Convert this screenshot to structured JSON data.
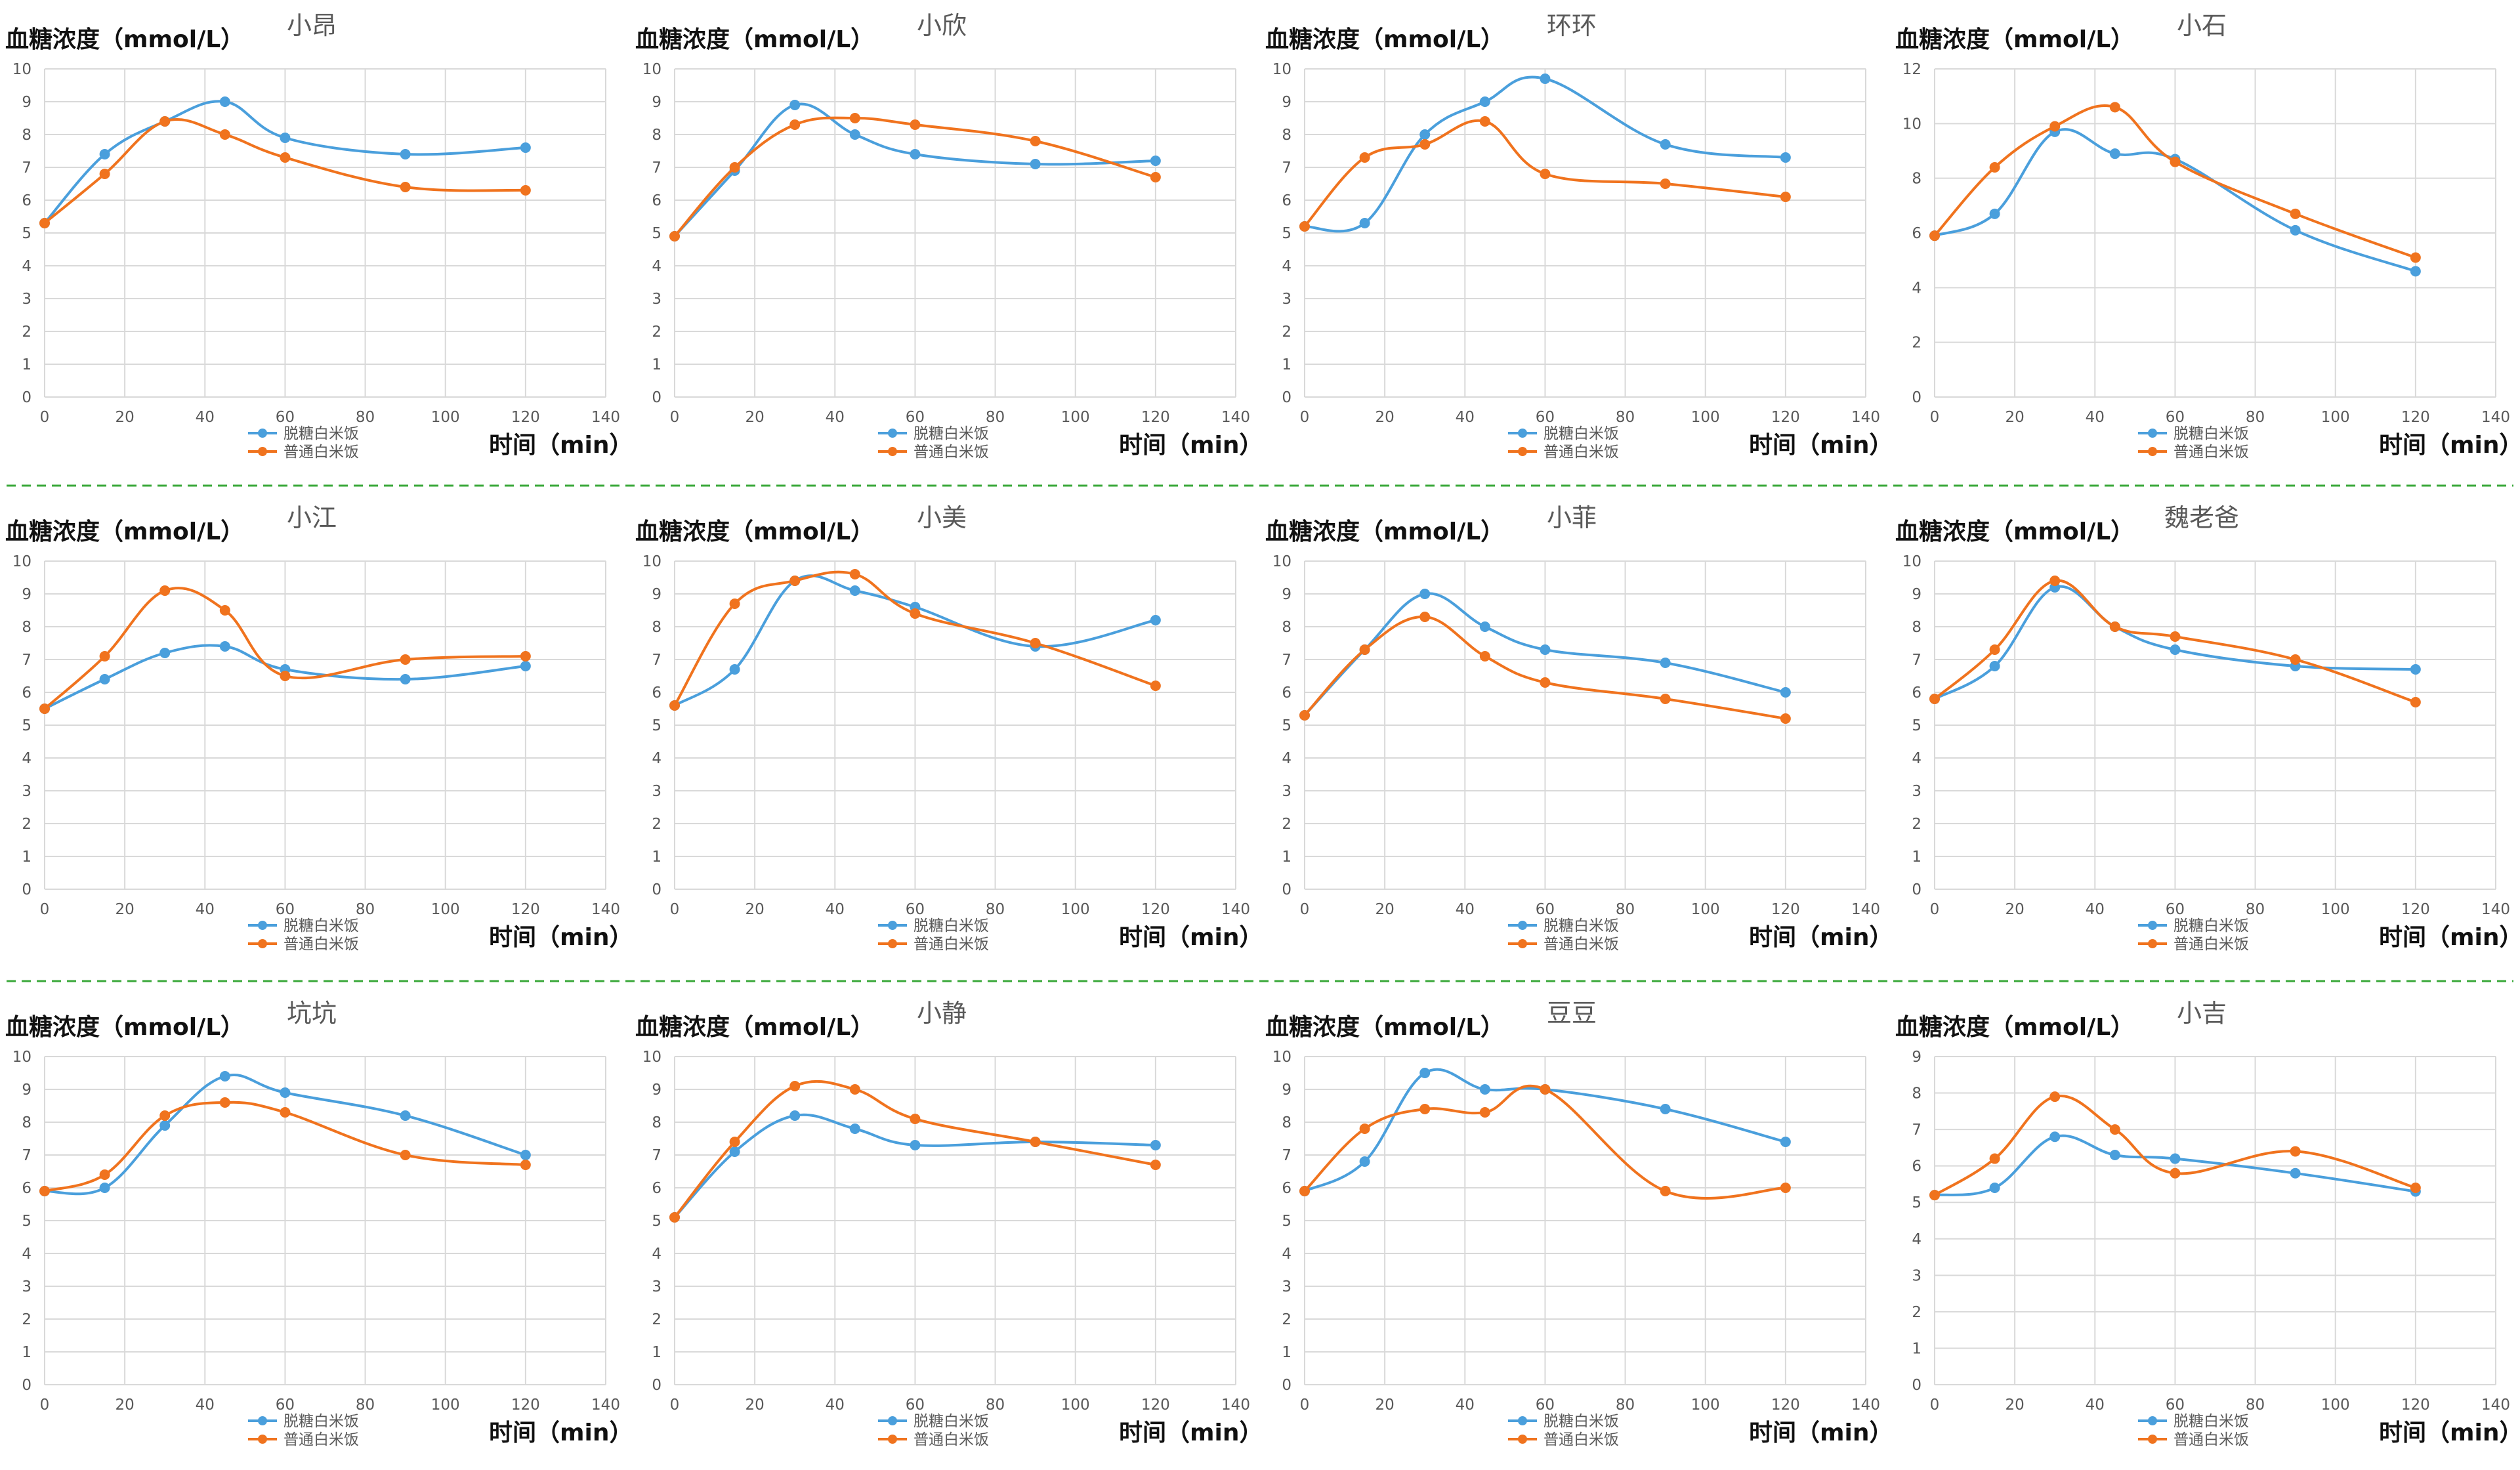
{
  "colors": {
    "sugarfree": "#4a9fdc",
    "regular": "#f0731e",
    "grid": "#d9d9d9",
    "divider": "#3aa83a"
  },
  "axis_text": {
    "ylabel": "血糖浓度（mmol/L）",
    "xlabel": "时间（min）"
  },
  "legend": {
    "sugarfree": "脱糖白米饭",
    "regular": "普通白米饭"
  },
  "chart_data": [
    {
      "type": "line",
      "title": "小昂",
      "legend_position": "bottom",
      "x": [
        0,
        20,
        40,
        60,
        80,
        100,
        120,
        140
      ],
      "y_ticks": [
        0,
        1,
        2,
        3,
        4,
        5,
        6,
        7,
        8,
        9,
        10
      ],
      "ylim": [
        0,
        10
      ],
      "series": [
        {
          "name": "脱糖白米饭",
          "points": [
            [
              0,
              5.3
            ],
            [
              15,
              7.4
            ],
            [
              30,
              8.4
            ],
            [
              45,
              9.0
            ],
            [
              60,
              7.9
            ],
            [
              90,
              7.4
            ],
            [
              120,
              7.6
            ]
          ]
        },
        {
          "name": "普通白米饭",
          "points": [
            [
              0,
              5.3
            ],
            [
              15,
              6.8
            ],
            [
              30,
              8.4
            ],
            [
              45,
              8.0
            ],
            [
              60,
              7.3
            ],
            [
              90,
              6.4
            ],
            [
              120,
              6.3
            ]
          ]
        }
      ]
    },
    {
      "type": "line",
      "title": "小欣",
      "legend_position": "bottom",
      "x": [
        0,
        20,
        40,
        60,
        80,
        100,
        120,
        140
      ],
      "y_ticks": [
        0,
        1,
        2,
        3,
        4,
        5,
        6,
        7,
        8,
        9,
        10
      ],
      "ylim": [
        0,
        10
      ],
      "series": [
        {
          "name": "脱糖白米饭",
          "points": [
            [
              0,
              4.9
            ],
            [
              15,
              6.9
            ],
            [
              30,
              8.9
            ],
            [
              45,
              8.0
            ],
            [
              60,
              7.4
            ],
            [
              90,
              7.1
            ],
            [
              120,
              7.2
            ]
          ]
        },
        {
          "name": "普通白米饭",
          "points": [
            [
              0,
              4.9
            ],
            [
              15,
              7.0
            ],
            [
              30,
              8.3
            ],
            [
              45,
              8.5
            ],
            [
              60,
              8.3
            ],
            [
              90,
              7.8
            ],
            [
              120,
              6.7
            ]
          ]
        }
      ]
    },
    {
      "type": "line",
      "title": "环环",
      "legend_position": "bottom",
      "x": [
        0,
        20,
        40,
        60,
        80,
        100,
        120,
        140
      ],
      "y_ticks": [
        0,
        1,
        2,
        3,
        4,
        5,
        6,
        7,
        8,
        9,
        10
      ],
      "ylim": [
        0,
        10
      ],
      "series": [
        {
          "name": "脱糖白米饭",
          "points": [
            [
              0,
              5.2
            ],
            [
              15,
              5.3
            ],
            [
              30,
              8.0
            ],
            [
              45,
              9.0
            ],
            [
              60,
              9.7
            ],
            [
              90,
              7.7
            ],
            [
              120,
              7.3
            ]
          ]
        },
        {
          "name": "普通白米饭",
          "points": [
            [
              0,
              5.2
            ],
            [
              15,
              7.3
            ],
            [
              30,
              7.7
            ],
            [
              45,
              8.4
            ],
            [
              60,
              6.8
            ],
            [
              90,
              6.5
            ],
            [
              120,
              6.1
            ]
          ]
        }
      ]
    },
    {
      "type": "line",
      "title": "小石",
      "legend_position": "bottom",
      "x": [
        0,
        20,
        40,
        60,
        80,
        100,
        120,
        140
      ],
      "y_ticks": [
        0,
        2,
        4,
        6,
        8,
        10,
        12
      ],
      "ylim": [
        0,
        12
      ],
      "series": [
        {
          "name": "脱糖白米饭",
          "points": [
            [
              0,
              5.9
            ],
            [
              15,
              6.7
            ],
            [
              30,
              9.7
            ],
            [
              45,
              8.9
            ],
            [
              60,
              8.7
            ],
            [
              90,
              6.1
            ],
            [
              120,
              4.6
            ]
          ]
        },
        {
          "name": "普通白米饭",
          "points": [
            [
              0,
              5.9
            ],
            [
              15,
              8.4
            ],
            [
              30,
              9.9
            ],
            [
              45,
              10.6
            ],
            [
              60,
              8.6
            ],
            [
              90,
              6.7
            ],
            [
              120,
              5.1
            ]
          ]
        }
      ]
    },
    {
      "type": "line",
      "title": "小江",
      "legend_position": "bottom",
      "x": [
        0,
        20,
        40,
        60,
        80,
        100,
        120,
        140
      ],
      "y_ticks": [
        0,
        1,
        2,
        3,
        4,
        5,
        6,
        7,
        8,
        9,
        10
      ],
      "ylim": [
        0,
        10
      ],
      "series": [
        {
          "name": "脱糖白米饭",
          "points": [
            [
              0,
              5.5
            ],
            [
              15,
              6.4
            ],
            [
              30,
              7.2
            ],
            [
              45,
              7.4
            ],
            [
              60,
              6.7
            ],
            [
              90,
              6.4
            ],
            [
              120,
              6.8
            ]
          ]
        },
        {
          "name": "普通白米饭",
          "points": [
            [
              0,
              5.5
            ],
            [
              15,
              7.1
            ],
            [
              30,
              9.1
            ],
            [
              45,
              8.5
            ],
            [
              60,
              6.5
            ],
            [
              90,
              7.0
            ],
            [
              120,
              7.1
            ]
          ]
        }
      ]
    },
    {
      "type": "line",
      "title": "小美",
      "legend_position": "bottom",
      "x": [
        0,
        20,
        40,
        60,
        80,
        100,
        120,
        140
      ],
      "y_ticks": [
        0,
        1,
        2,
        3,
        4,
        5,
        6,
        7,
        8,
        9,
        10
      ],
      "ylim": [
        0,
        10
      ],
      "series": [
        {
          "name": "脱糖白米饭",
          "points": [
            [
              0,
              5.6
            ],
            [
              15,
              6.7
            ],
            [
              30,
              9.4
            ],
            [
              45,
              9.1
            ],
            [
              60,
              8.6
            ],
            [
              90,
              7.4
            ],
            [
              120,
              8.2
            ]
          ]
        },
        {
          "name": "普通白米饭",
          "points": [
            [
              0,
              5.6
            ],
            [
              15,
              8.7
            ],
            [
              30,
              9.4
            ],
            [
              45,
              9.6
            ],
            [
              60,
              8.4
            ],
            [
              90,
              7.5
            ],
            [
              120,
              6.2
            ]
          ]
        }
      ]
    },
    {
      "type": "line",
      "title": "小菲",
      "legend_position": "bottom",
      "x": [
        0,
        20,
        40,
        60,
        80,
        100,
        120,
        140
      ],
      "y_ticks": [
        0,
        1,
        2,
        3,
        4,
        5,
        6,
        7,
        8,
        9,
        10
      ],
      "ylim": [
        0,
        10
      ],
      "series": [
        {
          "name": "脱糖白米饭",
          "points": [
            [
              0,
              5.3
            ],
            [
              15,
              7.3
            ],
            [
              30,
              9.0
            ],
            [
              45,
              8.0
            ],
            [
              60,
              7.3
            ],
            [
              90,
              6.9
            ],
            [
              120,
              6.0
            ]
          ]
        },
        {
          "name": "普通白米饭",
          "points": [
            [
              0,
              5.3
            ],
            [
              15,
              7.3
            ],
            [
              30,
              8.3
            ],
            [
              45,
              7.1
            ],
            [
              60,
              6.3
            ],
            [
              90,
              5.8
            ],
            [
              120,
              5.2
            ]
          ]
        }
      ]
    },
    {
      "type": "line",
      "title": "魏老爸",
      "legend_position": "bottom",
      "x": [
        0,
        20,
        40,
        60,
        80,
        100,
        120,
        140
      ],
      "y_ticks": [
        0,
        1,
        2,
        3,
        4,
        5,
        6,
        7,
        8,
        9,
        10
      ],
      "ylim": [
        0,
        10
      ],
      "series": [
        {
          "name": "脱糖白米饭",
          "points": [
            [
              0,
              5.8
            ],
            [
              15,
              6.8
            ],
            [
              30,
              9.2
            ],
            [
              45,
              8.0
            ],
            [
              60,
              7.3
            ],
            [
              90,
              6.8
            ],
            [
              120,
              6.7
            ]
          ]
        },
        {
          "name": "普通白米饭",
          "points": [
            [
              0,
              5.8
            ],
            [
              15,
              7.3
            ],
            [
              30,
              9.4
            ],
            [
              45,
              8.0
            ],
            [
              60,
              7.7
            ],
            [
              90,
              7.0
            ],
            [
              120,
              5.7
            ]
          ]
        }
      ]
    },
    {
      "type": "line",
      "title": "坑坑",
      "legend_position": "bottom",
      "x": [
        0,
        20,
        40,
        60,
        80,
        100,
        120,
        140
      ],
      "y_ticks": [
        0,
        1,
        2,
        3,
        4,
        5,
        6,
        7,
        8,
        9,
        10
      ],
      "ylim": [
        0,
        10
      ],
      "series": [
        {
          "name": "脱糖白米饭",
          "points": [
            [
              0,
              5.9
            ],
            [
              15,
              6.0
            ],
            [
              30,
              7.9
            ],
            [
              45,
              9.4
            ],
            [
              60,
              8.9
            ],
            [
              90,
              8.2
            ],
            [
              120,
              7.0
            ]
          ]
        },
        {
          "name": "普通白米饭",
          "points": [
            [
              0,
              5.9
            ],
            [
              15,
              6.4
            ],
            [
              30,
              8.2
            ],
            [
              45,
              8.6
            ],
            [
              60,
              8.3
            ],
            [
              90,
              7.0
            ],
            [
              120,
              6.7
            ]
          ]
        }
      ]
    },
    {
      "type": "line",
      "title": "小静",
      "legend_position": "bottom",
      "x": [
        0,
        20,
        40,
        60,
        80,
        100,
        120,
        140
      ],
      "y_ticks": [
        0,
        1,
        2,
        3,
        4,
        5,
        6,
        7,
        8,
        9,
        10
      ],
      "ylim": [
        0,
        10
      ],
      "series": [
        {
          "name": "脱糖白米饭",
          "points": [
            [
              0,
              5.1
            ],
            [
              15,
              7.1
            ],
            [
              30,
              8.2
            ],
            [
              45,
              7.8
            ],
            [
              60,
              7.3
            ],
            [
              90,
              7.4
            ],
            [
              120,
              7.3
            ]
          ]
        },
        {
          "name": "普通白米饭",
          "points": [
            [
              0,
              5.1
            ],
            [
              15,
              7.4
            ],
            [
              30,
              9.1
            ],
            [
              45,
              9.0
            ],
            [
              60,
              8.1
            ],
            [
              90,
              7.4
            ],
            [
              120,
              6.7
            ]
          ]
        }
      ]
    },
    {
      "type": "line",
      "title": "豆豆",
      "legend_position": "bottom",
      "x": [
        0,
        20,
        40,
        60,
        80,
        100,
        120,
        140
      ],
      "y_ticks": [
        0,
        1,
        2,
        3,
        4,
        5,
        6,
        7,
        8,
        9,
        10
      ],
      "ylim": [
        0,
        10
      ],
      "series": [
        {
          "name": "脱糖白米饭",
          "points": [
            [
              0,
              5.9
            ],
            [
              15,
              6.8
            ],
            [
              30,
              9.5
            ],
            [
              45,
              9.0
            ],
            [
              60,
              9.0
            ],
            [
              90,
              8.4
            ],
            [
              120,
              7.4
            ]
          ]
        },
        {
          "name": "普通白米饭",
          "points": [
            [
              0,
              5.9
            ],
            [
              15,
              7.8
            ],
            [
              30,
              8.4
            ],
            [
              45,
              8.3
            ],
            [
              60,
              9.0
            ],
            [
              90,
              5.9
            ],
            [
              120,
              6.0
            ]
          ]
        }
      ]
    },
    {
      "type": "line",
      "title": "小吉",
      "legend_position": "bottom",
      "x": [
        0,
        20,
        40,
        60,
        80,
        100,
        120,
        140
      ],
      "y_ticks": [
        0,
        1,
        2,
        3,
        4,
        5,
        6,
        7,
        8,
        9
      ],
      "ylim": [
        0,
        9
      ],
      "series": [
        {
          "name": "脱糖白米饭",
          "points": [
            [
              0,
              5.2
            ],
            [
              15,
              5.4
            ],
            [
              30,
              6.8
            ],
            [
              45,
              6.3
            ],
            [
              60,
              6.2
            ],
            [
              90,
              5.8
            ],
            [
              120,
              5.3
            ]
          ]
        },
        {
          "name": "普通白米饭",
          "points": [
            [
              0,
              5.2
            ],
            [
              15,
              6.2
            ],
            [
              30,
              7.9
            ],
            [
              45,
              7.0
            ],
            [
              60,
              5.8
            ],
            [
              90,
              6.4
            ],
            [
              120,
              5.4
            ]
          ]
        }
      ]
    }
  ]
}
